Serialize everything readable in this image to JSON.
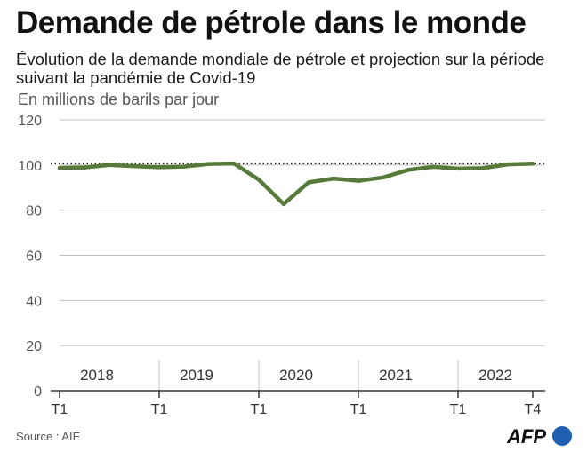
{
  "header": {
    "title": "Demande de pétrole dans le monde",
    "subtitle": "Évolution de la demande mondiale de pétrole et projection sur la période suivant la pandémie de Covid-19",
    "unit": "En millions de barils par jour"
  },
  "footer": {
    "source": "Source : AIE",
    "logo_text": "AFP"
  },
  "colors": {
    "line": "#567a3a",
    "grid": "#bfbfbf",
    "reference": "#222222"
  },
  "chart_data": {
    "type": "line",
    "title": "Demande de pétrole dans le monde",
    "ylabel": "En millions de barils par jour",
    "ylim": [
      0,
      120
    ],
    "yticks": [
      0,
      20,
      40,
      60,
      80,
      100,
      120
    ],
    "years": [
      "2018",
      "2019",
      "2020",
      "2021",
      "2022"
    ],
    "x_tick_labels": [
      "T1",
      "T1",
      "T1",
      "T1",
      "T1",
      "T4"
    ],
    "quarters": [
      "2018-T1",
      "2018-T2",
      "2018-T3",
      "2018-T4",
      "2019-T1",
      "2019-T2",
      "2019-T3",
      "2019-T4",
      "2020-T1",
      "2020-T2",
      "2020-T3",
      "2020-T4",
      "2021-T1",
      "2021-T2",
      "2021-T3",
      "2021-T4",
      "2022-T1",
      "2022-T2",
      "2022-T3",
      "2022-T4"
    ],
    "series": [
      {
        "values": [
          98.7,
          98.9,
          100.0,
          99.5,
          99.0,
          99.3,
          100.5,
          100.7,
          93.5,
          82.7,
          92.3,
          94.0,
          93.0,
          94.5,
          97.8,
          99.2,
          98.4,
          98.6,
          100.3,
          100.6
        ]
      }
    ],
    "reference_line": 100.6,
    "grid": true,
    "legend": "none"
  }
}
